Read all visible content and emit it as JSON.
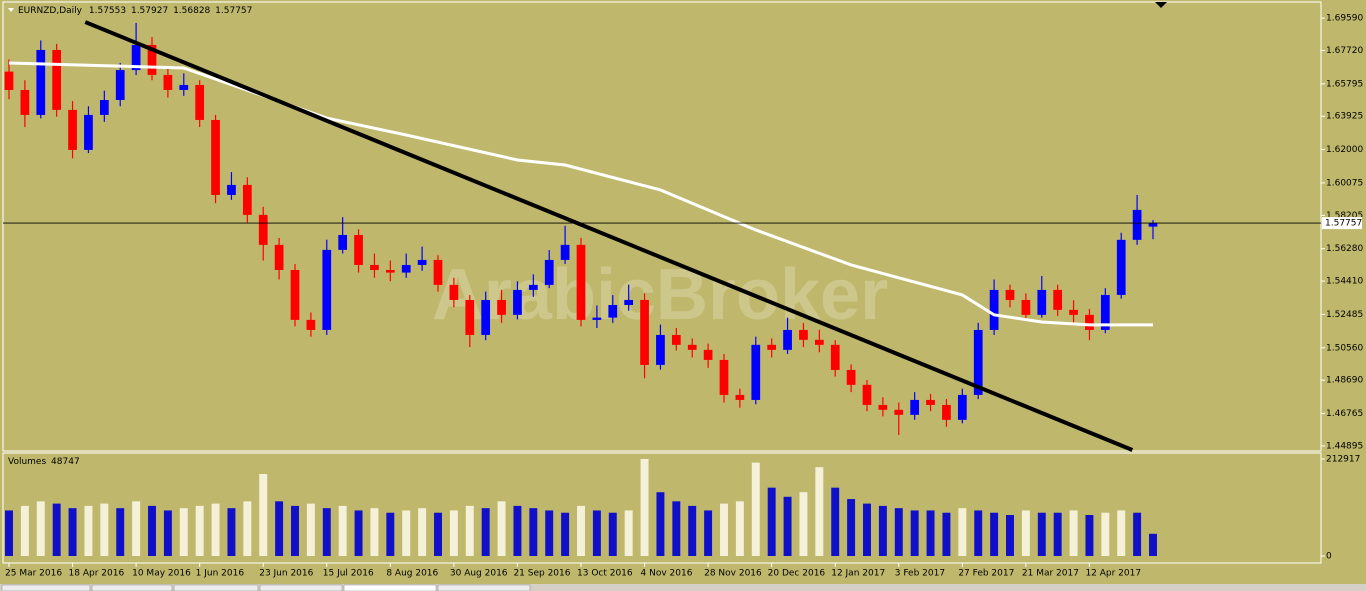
{
  "chart_data": {
    "type": "candlestick",
    "symbol": "EURNZD,Daily",
    "watermark": "ArabicBroker",
    "bull_color": "#0000ff",
    "bear_color": "#ff0000",
    "ylim": [
      1.4466,
      1.7046
    ],
    "yticks": [
      {
        "value": 1.6959,
        "label": "1.69590"
      },
      {
        "value": 1.6772,
        "label": "1.67720"
      },
      {
        "value": 1.65795,
        "label": "1.65795"
      },
      {
        "value": 1.63925,
        "label": "1.63925"
      },
      {
        "value": 1.62,
        "label": "1.62000"
      },
      {
        "value": 1.60075,
        "label": "1.60075"
      },
      {
        "value": 1.58205,
        "label": "1.58205"
      },
      {
        "value": 1.5628,
        "label": "1.56280"
      },
      {
        "value": 1.5441,
        "label": "1.54410"
      },
      {
        "value": 1.52485,
        "label": "1.52485"
      },
      {
        "value": 1.5056,
        "label": "1.50560"
      },
      {
        "value": 1.4869,
        "label": "1.48690"
      },
      {
        "value": 1.46765,
        "label": "1.46765"
      },
      {
        "value": 1.44895,
        "label": "1.44895"
      }
    ],
    "categories": [
      "25 Mar 2016",
      null,
      null,
      null,
      "18 Apr 2016",
      null,
      null,
      null,
      "10 May 2016",
      null,
      null,
      null,
      "1 Jun 2016",
      null,
      null,
      null,
      "23 Jun 2016",
      null,
      null,
      null,
      "15 Jul 2016",
      null,
      null,
      null,
      "8 Aug 2016",
      null,
      null,
      null,
      "30 Aug 2016",
      null,
      null,
      null,
      "21 Sep 2016",
      null,
      null,
      null,
      "13 Oct 2016",
      null,
      null,
      null,
      "4 Nov 2016",
      null,
      null,
      null,
      "28 Nov 2016",
      null,
      null,
      null,
      "20 Dec 2016",
      null,
      null,
      null,
      "12 Jan 2017",
      null,
      null,
      null,
      "3 Feb 2017",
      null,
      null,
      null,
      "27 Feb 2017",
      null,
      null,
      null,
      "21 Mar 2017",
      null,
      null,
      null,
      "12 Apr 2017",
      null,
      null,
      null,
      null
    ],
    "ohlc": [
      [
        1.665,
        1.672,
        1.649,
        1.6544
      ],
      [
        1.6544,
        1.66,
        1.633,
        1.64
      ],
      [
        1.64,
        1.683,
        1.638,
        1.6775
      ],
      [
        1.6775,
        1.681,
        1.639,
        1.6429
      ],
      [
        1.6429,
        1.648,
        1.615,
        1.6198
      ],
      [
        1.6198,
        1.645,
        1.618,
        1.64
      ],
      [
        1.64,
        1.654,
        1.636,
        1.6486
      ],
      [
        1.6486,
        1.67,
        1.645,
        1.6659
      ],
      [
        1.6659,
        1.6931,
        1.663,
        1.6804
      ],
      [
        1.6804,
        1.685,
        1.66,
        1.6631
      ],
      [
        1.6631,
        1.668,
        1.65,
        1.6544
      ],
      [
        1.6544,
        1.664,
        1.651,
        1.6573
      ],
      [
        1.6573,
        1.66,
        1.633,
        1.6371
      ],
      [
        1.6371,
        1.64,
        1.589,
        1.5938
      ],
      [
        1.5938,
        1.607,
        1.591,
        1.5996
      ],
      [
        1.5996,
        1.604,
        1.578,
        1.5823
      ],
      [
        1.5823,
        1.587,
        1.556,
        1.565
      ],
      [
        1.565,
        1.569,
        1.545,
        1.5505
      ],
      [
        1.5505,
        1.554,
        1.518,
        1.5217
      ],
      [
        1.5217,
        1.526,
        1.512,
        1.5159
      ],
      [
        1.5159,
        1.568,
        1.513,
        1.5621
      ],
      [
        1.5621,
        1.581,
        1.56,
        1.5707
      ],
      [
        1.5707,
        1.574,
        1.549,
        1.5534
      ],
      [
        1.5534,
        1.56,
        1.546,
        1.5505
      ],
      [
        1.5505,
        1.556,
        1.544,
        1.549
      ],
      [
        1.549,
        1.56,
        1.546,
        1.5534
      ],
      [
        1.5534,
        1.564,
        1.55,
        1.5563
      ],
      [
        1.5563,
        1.559,
        1.538,
        1.5419
      ],
      [
        1.5419,
        1.546,
        1.529,
        1.5332
      ],
      [
        1.5332,
        1.536,
        1.506,
        1.513
      ],
      [
        1.513,
        1.538,
        1.51,
        1.5332
      ],
      [
        1.5332,
        1.539,
        1.52,
        1.5246
      ],
      [
        1.5246,
        1.544,
        1.522,
        1.539
      ],
      [
        1.539,
        1.548,
        1.535,
        1.5419
      ],
      [
        1.5419,
        1.562,
        1.54,
        1.5563
      ],
      [
        1.5563,
        1.576,
        1.554,
        1.565
      ],
      [
        1.565,
        1.569,
        1.518,
        1.5217
      ],
      [
        1.5217,
        1.53,
        1.517,
        1.523
      ],
      [
        1.523,
        1.536,
        1.52,
        1.5303
      ],
      [
        1.5303,
        1.542,
        1.527,
        1.5332
      ],
      [
        1.5332,
        1.537,
        1.488,
        1.4957
      ],
      [
        1.4957,
        1.519,
        1.493,
        1.513
      ],
      [
        1.513,
        1.517,
        1.504,
        1.5073
      ],
      [
        1.5073,
        1.511,
        1.5,
        1.5044
      ],
      [
        1.5044,
        1.508,
        1.494,
        1.4986
      ],
      [
        1.4986,
        1.502,
        1.474,
        1.4784
      ],
      [
        1.4784,
        1.482,
        1.471,
        1.4755
      ],
      [
        1.4755,
        1.512,
        1.473,
        1.5073
      ],
      [
        1.5073,
        1.511,
        1.5,
        1.5044
      ],
      [
        1.5044,
        1.523,
        1.502,
        1.5159
      ],
      [
        1.5159,
        1.52,
        1.506,
        1.5102
      ],
      [
        1.5102,
        1.516,
        1.503,
        1.5073
      ],
      [
        1.5073,
        1.51,
        1.489,
        1.4928
      ],
      [
        1.4928,
        1.496,
        1.48,
        1.4842
      ],
      [
        1.4842,
        1.487,
        1.469,
        1.4726
      ],
      [
        1.4726,
        1.477,
        1.466,
        1.4698
      ],
      [
        1.4698,
        1.474,
        1.4553,
        1.4669
      ],
      [
        1.4669,
        1.48,
        1.464,
        1.4755
      ],
      [
        1.4755,
        1.479,
        1.469,
        1.4726
      ],
      [
        1.4726,
        1.476,
        1.46,
        1.464
      ],
      [
        1.464,
        1.482,
        1.462,
        1.4784
      ],
      [
        1.4784,
        1.52,
        1.476,
        1.5159
      ],
      [
        1.5159,
        1.545,
        1.513,
        1.539
      ],
      [
        1.539,
        1.542,
        1.529,
        1.5332
      ],
      [
        1.5332,
        1.537,
        1.521,
        1.5246
      ],
      [
        1.5246,
        1.547,
        1.523,
        1.539
      ],
      [
        1.539,
        1.542,
        1.524,
        1.5275
      ],
      [
        1.5275,
        1.533,
        1.52,
        1.5246
      ],
      [
        1.5246,
        1.528,
        1.51,
        1.5159
      ],
      [
        1.5159,
        1.54,
        1.514,
        1.5361
      ],
      [
        1.5361,
        1.572,
        1.534,
        1.5679
      ],
      [
        1.5679,
        1.5938,
        1.565,
        1.5852
      ],
      [
        1.57553,
        1.57927,
        1.56828,
        1.57757
      ]
    ],
    "ma": {
      "color": "#ffffff",
      "x": [
        0,
        11,
        20,
        25,
        32,
        35,
        41,
        47,
        53,
        60,
        62,
        65,
        68,
        72
      ],
      "values": [
        1.67,
        1.6671,
        1.6382,
        1.6284,
        1.614,
        1.6111,
        1.5967,
        1.5736,
        1.5534,
        1.5361,
        1.5246,
        1.5205,
        1.5188,
        1.5188
      ]
    },
    "trendline": {
      "color": "#000000",
      "x": [
        4.8,
        70.7
      ],
      "values": [
        1.6936,
        1.4466
      ]
    },
    "volume": {
      "label": "Volumes",
      "up_color": "#f5f0d8",
      "down_color": "#1010c8",
      "ylim": [
        0,
        212917
      ],
      "yticks": [
        0,
        212917
      ],
      "values": [
        100000,
        110000,
        120000,
        115000,
        105000,
        110000,
        115000,
        105000,
        120000,
        110000,
        100000,
        105000,
        110000,
        115000,
        105000,
        120000,
        180000,
        120000,
        110000,
        115000,
        105000,
        110000,
        100000,
        105000,
        95000,
        100000,
        105000,
        95000,
        100000,
        110000,
        105000,
        120000,
        110000,
        105000,
        100000,
        95000,
        110000,
        100000,
        95000,
        100000,
        212917,
        140000,
        120000,
        110000,
        100000,
        115000,
        120000,
        205000,
        150000,
        130000,
        140000,
        195000,
        150000,
        125000,
        115000,
        110000,
        105000,
        100000,
        100000,
        95000,
        105000,
        100000,
        95000,
        90000,
        100000,
        95000,
        95000,
        100000,
        90000,
        95000,
        100000,
        95000,
        48747
      ]
    }
  }
}
